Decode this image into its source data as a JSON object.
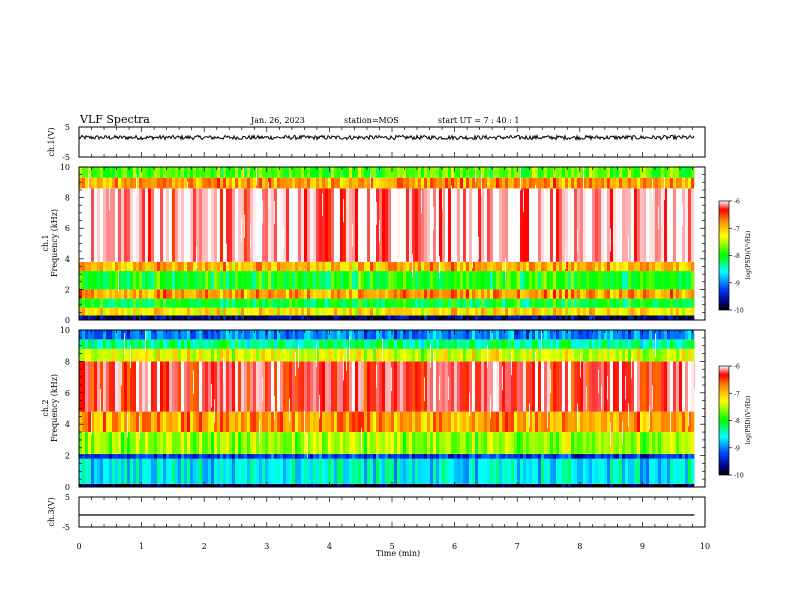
{
  "header": {
    "title": "VLF Spectra",
    "date": "Jan. 26, 2023",
    "station": "station=MOS",
    "start_ut": "start UT =  7 : 40 : 1"
  },
  "chart_data": [
    {
      "type": "line",
      "panel": "ch1-waveform",
      "ylabel": "ch.1(V)",
      "yticks": [
        "5",
        "-5"
      ],
      "ylim": [
        -5,
        5
      ],
      "x_range_min": [
        0,
        9.83
      ],
      "series": [
        {
          "values": [
            1.5
          ]
        }
      ]
    },
    {
      "type": "heatmap",
      "panel": "ch1-spectrogram",
      "ylabel": "ch.1\nFrequency (kHz)",
      "ylim": [
        0,
        10
      ],
      "yticks": [
        "0",
        "2",
        "4",
        "6",
        "8",
        "10"
      ],
      "colorbar": {
        "label": "log(PSD)(V²/Hz)",
        "ticks": [
          "-6",
          "-7",
          "-8",
          "-9",
          "-10"
        ],
        "range": [
          -10,
          -6
        ]
      },
      "bands_khz": [
        {
          "from": 0.0,
          "to": 0.3,
          "level": -9.7
        },
        {
          "from": 0.3,
          "to": 0.8,
          "level": -7.2
        },
        {
          "from": 0.8,
          "to": 1.4,
          "level": -8.1
        },
        {
          "from": 1.4,
          "to": 2.0,
          "level": -6.9
        },
        {
          "from": 2.0,
          "to": 3.2,
          "level": -8.0
        },
        {
          "from": 3.2,
          "to": 3.8,
          "level": -7.0
        },
        {
          "from": 3.8,
          "to": 8.6,
          "level": -6.1
        },
        {
          "from": 8.6,
          "to": 9.3,
          "level": -6.9
        },
        {
          "from": 9.3,
          "to": 10.0,
          "level": -7.8
        }
      ]
    },
    {
      "type": "heatmap",
      "panel": "ch2-spectrogram",
      "ylabel": "ch.2\nFrequency (kHz)",
      "ylim": [
        0,
        10
      ],
      "yticks": [
        "0",
        "2",
        "4",
        "6",
        "8",
        "10"
      ],
      "colorbar": {
        "label": "log(PSD)(V²/Hz)",
        "ticks": [
          "-6",
          "-7",
          "-8",
          "-9",
          "-10"
        ],
        "range": [
          -10,
          -6
        ]
      },
      "bands_khz": [
        {
          "from": 0.0,
          "to": 0.2,
          "level": -9.9
        },
        {
          "from": 0.2,
          "to": 1.8,
          "level": -8.6
        },
        {
          "from": 1.8,
          "to": 2.1,
          "level": -9.3
        },
        {
          "from": 2.1,
          "to": 3.5,
          "level": -7.6
        },
        {
          "from": 3.5,
          "to": 4.8,
          "level": -6.9
        },
        {
          "from": 4.8,
          "to": 8.0,
          "level": -6.3
        },
        {
          "from": 8.0,
          "to": 8.8,
          "level": -7.4
        },
        {
          "from": 8.8,
          "to": 9.4,
          "level": -8.3
        },
        {
          "from": 9.4,
          "to": 10.0,
          "level": -9.0
        }
      ]
    },
    {
      "type": "line",
      "panel": "ch3-waveform",
      "ylabel": "ch.3(V)",
      "xlabel": "Time (min)",
      "yticks": [
        "5",
        "-5"
      ],
      "ylim": [
        -5,
        5
      ],
      "xlim": [
        0,
        10
      ],
      "xticks": [
        "0",
        "1",
        "2",
        "3",
        "4",
        "5",
        "6",
        "7",
        "8",
        "9",
        "10"
      ],
      "series": [
        {
          "values": [
            -1.0
          ]
        }
      ]
    }
  ]
}
